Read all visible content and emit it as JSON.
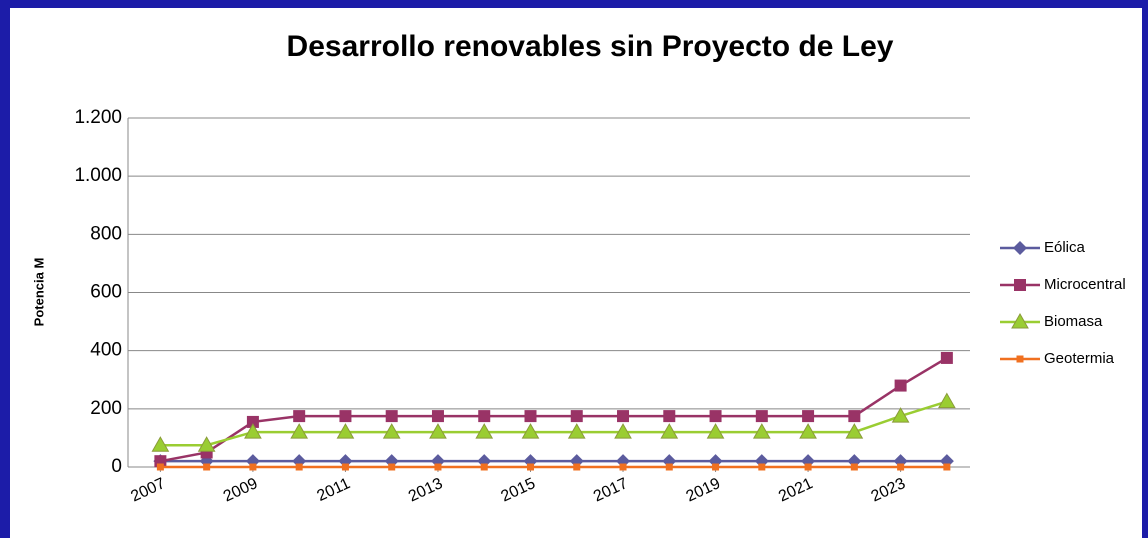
{
  "chart_data": {
    "type": "line",
    "title": "Desarrollo renovables sin Proyecto de Ley",
    "y_label": "Potencia M",
    "x": [
      2007,
      2008,
      2009,
      2010,
      2011,
      2012,
      2013,
      2014,
      2015,
      2016,
      2017,
      2018,
      2019,
      2020,
      2021,
      2022,
      2023,
      2024
    ],
    "xlim": [
      2006.3,
      2024.5
    ],
    "xticks": [
      2007,
      2009,
      2011,
      2013,
      2015,
      2017,
      2019,
      2021,
      2023
    ],
    "ylim": [
      0,
      1200
    ],
    "yticks": [
      0,
      200,
      400,
      600,
      800,
      {
        "value": 1000,
        "label": "1.000"
      },
      {
        "value": 1200,
        "label": "1.200"
      }
    ],
    "grid": true,
    "legend": "right",
    "series": [
      {
        "name": "Eólica",
        "color": "#5b5b9e",
        "marker": "diamond",
        "values": [
          20,
          20,
          20,
          20,
          20,
          20,
          20,
          20,
          20,
          20,
          20,
          20,
          20,
          20,
          20,
          20,
          20,
          20
        ]
      },
      {
        "name": "Microcentral",
        "color": "#993366",
        "marker": "square",
        "values": [
          20,
          50,
          155,
          175,
          175,
          175,
          175,
          175,
          175,
          175,
          175,
          175,
          175,
          175,
          175,
          175,
          280,
          375
        ]
      },
      {
        "name": "Biomasa",
        "color": "#9acd32",
        "marker": "triangle",
        "values": [
          75,
          75,
          120,
          120,
          120,
          120,
          120,
          120,
          120,
          120,
          120,
          120,
          120,
          120,
          120,
          120,
          175,
          225
        ]
      },
      {
        "name": "Geotermia",
        "color": "#f07020",
        "marker": "smallsquare",
        "values": [
          0,
          0,
          0,
          0,
          0,
          0,
          0,
          0,
          0,
          0,
          0,
          0,
          0,
          0,
          0,
          0,
          0,
          0
        ]
      }
    ]
  }
}
